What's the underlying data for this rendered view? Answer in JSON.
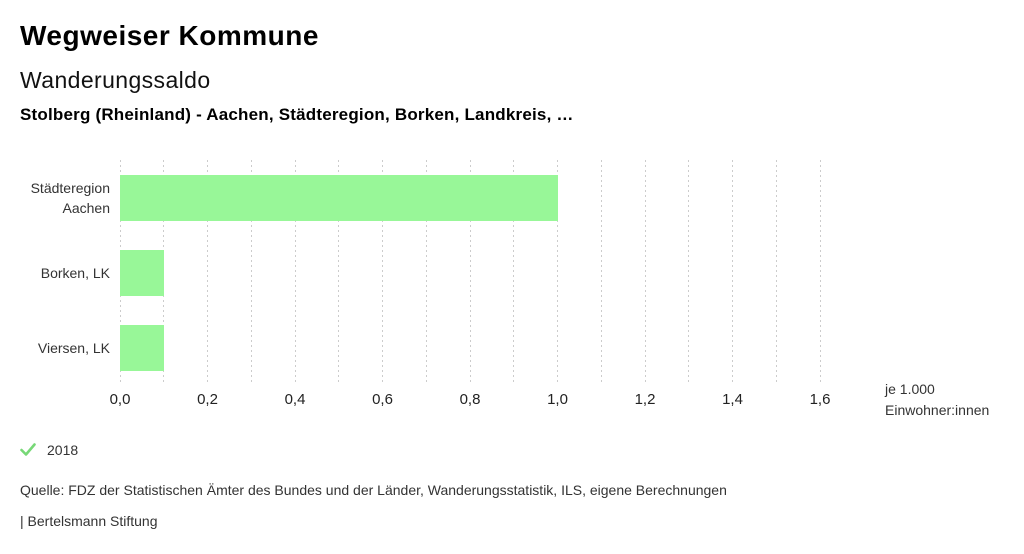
{
  "header": {
    "app_title": "Wegweiser Kommune",
    "chart_title": "Wanderungssaldo",
    "comparison": "Stolberg (Rheinland) - Aachen, Städteregion, Borken, Landkreis, …"
  },
  "chart_data": {
    "type": "bar",
    "orientation": "horizontal",
    "title": "Wanderungssaldo",
    "categories": [
      "Städteregion Aachen",
      "Borken, LK",
      "Viersen, LK"
    ],
    "series": [
      {
        "name": "2018",
        "values": [
          1.0,
          0.1,
          0.1
        ]
      }
    ],
    "unit": "je 1.000 Einwohner:innen",
    "xlim": [
      0,
      1.6
    ],
    "x_major_tick": 0.2,
    "x_minor_tick": 0.1,
    "x_tick_labels": [
      "0,0",
      "0,2",
      "0,4",
      "0,6",
      "0,8",
      "1,0",
      "1,2",
      "1,4",
      "1,6"
    ],
    "grid": "vertical-dashed",
    "bar_color": "#98f798",
    "gridline_color": "#cccccc"
  },
  "axis": {
    "unit_line1": "je 1.000",
    "unit_line2": "Einwohner:innen"
  },
  "legend": {
    "year": "2018",
    "check_color": "#77d877"
  },
  "footer": {
    "source": "Quelle: FDZ der Statistischen Ämter des Bundes und der Länder, Wanderungsstatistik, ILS, eigene Berechnungen",
    "branding": "| Bertelsmann Stiftung"
  }
}
